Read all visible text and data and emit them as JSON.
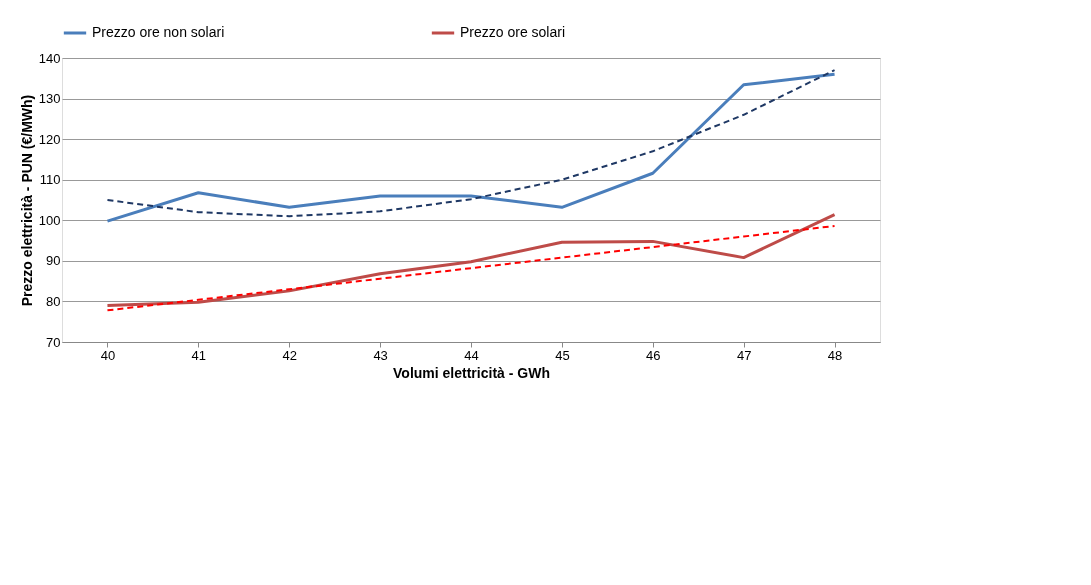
{
  "chart_data": {
    "type": "line",
    "xlabel": "Volumi elettricità - GWh",
    "ylabel": "Prezzo elettricità - PUN (€/MWh)",
    "categories": [
      "40",
      "41",
      "42",
      "43",
      "44",
      "45",
      "46",
      "47",
      "48"
    ],
    "series": [
      {
        "name": "Prezzo ore non solari",
        "color": "#4a7ebb",
        "values": [
          99.8,
          106.8,
          103.2,
          106,
          106,
          103.2,
          111.6,
          133.4,
          136
        ]
      },
      {
        "name": "Prezzo ore solari",
        "color": "#be4b48",
        "values": [
          79,
          79.8,
          82.6,
          86.8,
          89.8,
          94.6,
          94.8,
          90.8,
          101.4
        ]
      },
      {
        "color": "#1f3864",
        "line_style": "dashed",
        "values": [
          105,
          102,
          101,
          102.2,
          105.2,
          110,
          117,
          126,
          137
        ]
      },
      {
        "color": "#ff0000",
        "line_style": "dashed",
        "values": [
          77.8,
          80.4,
          83,
          85.6,
          88.2,
          90.8,
          93.4,
          96,
          98.6
        ]
      }
    ],
    "ylim": [
      70,
      140
    ],
    "yticks": [
      70,
      80,
      90,
      100,
      110,
      120,
      130,
      140
    ],
    "grid": "y",
    "legend": "top",
    "marker": "none",
    "line_style": "solid"
  }
}
